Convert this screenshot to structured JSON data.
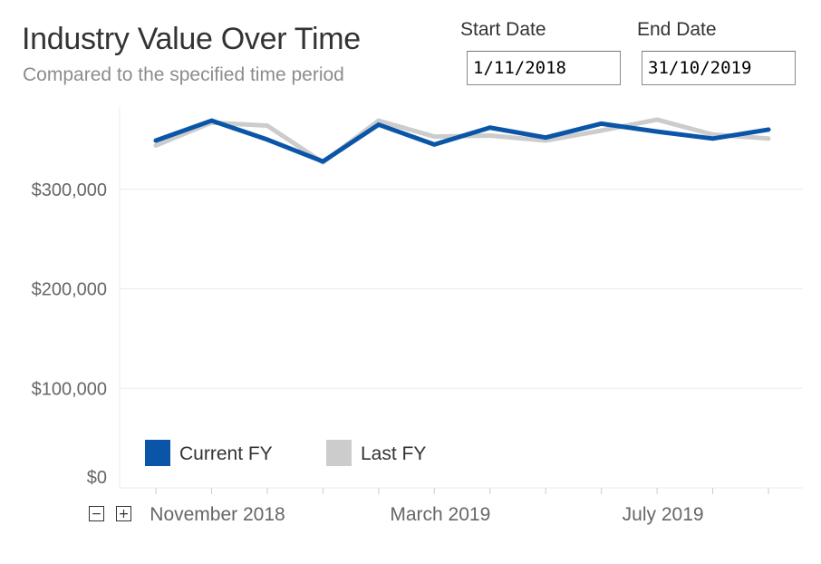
{
  "header": {
    "title": "Industry Value Over Time",
    "subtitle": "Compared to the specified time period"
  },
  "filters": {
    "start_label": "Start Date",
    "start_value": "1/11/2018",
    "end_label": "End Date",
    "end_value": "31/10/2019"
  },
  "zoom": {
    "minus": "−",
    "plus": "+"
  },
  "colors": {
    "current": "#0b55a8",
    "last": "#cccccc",
    "grid": "#ebebeb",
    "axis_text": "#666666"
  },
  "chart_data": {
    "type": "line",
    "title": "",
    "xlabel": "",
    "ylabel": "",
    "x": [
      "2018-11",
      "2018-12",
      "2019-01",
      "2019-02",
      "2019-03",
      "2019-04",
      "2019-05",
      "2019-06",
      "2019-07",
      "2019-08",
      "2019-09",
      "2019-10"
    ],
    "ylim": [
      0,
      390000
    ],
    "y_ticks": [
      0,
      100000,
      200000,
      300000
    ],
    "y_tick_labels": [
      "$0",
      "$100,000",
      "$200,000",
      "$300,000"
    ],
    "x_tick_labels": [
      {
        "x": "2018-11",
        "label": "November 2018"
      },
      {
        "x": "2019-03",
        "label": "March 2019"
      },
      {
        "x": "2019-07",
        "label": "July 2019"
      }
    ],
    "grid": true,
    "legend": "bottom-left",
    "series": [
      {
        "name": "Current FY",
        "values": [
          349000,
          369000,
          350000,
          328000,
          365000,
          345000,
          362000,
          352000,
          366000,
          358000,
          351000,
          360000
        ]
      },
      {
        "name": "Last FY",
        "values": [
          344000,
          367000,
          364000,
          327000,
          369000,
          353000,
          354000,
          349000,
          359000,
          370000,
          355000,
          351000
        ]
      }
    ]
  }
}
